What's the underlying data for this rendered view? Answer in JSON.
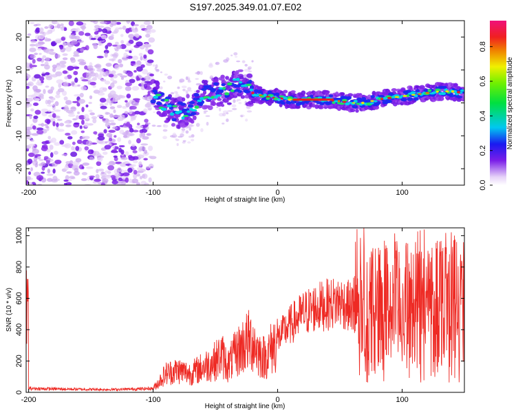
{
  "title": "S197.2025.349.01.07.E02",
  "colors": {
    "snr_line": "#ee2a24",
    "axis": "#000000",
    "background": "#ffffff"
  },
  "chart_data": [
    {
      "type": "heatmap",
      "title": "",
      "xlabel": "Height of straight line (km)",
      "ylabel": "Frequency (Hz)",
      "xlim": [
        -202,
        150
      ],
      "ylim": [
        -25,
        25
      ],
      "xticks": [
        -200,
        -100,
        0,
        100
      ],
      "yticks": [
        -20,
        -10,
        0,
        10,
        20
      ],
      "colorbar": {
        "label": "Normalized spectral amplitude",
        "range": [
          0.0,
          0.95
        ],
        "ticks": [
          0.0,
          0.2,
          0.4,
          0.6,
          0.8
        ],
        "colormap": "rainbow (white-violet-blue-cyan-green-yellow-red-magenta)"
      },
      "description_regions": [
        {
          "x_range": [
            -202,
            -100
          ],
          "freq_range": [
            -25,
            25
          ],
          "amplitude": "low, scattered noise"
        },
        {
          "x_range": [
            -100,
            -20
          ],
          "freq_range": [
            -8,
            10
          ],
          "amplitude": "moderate, diffuse band"
        },
        {
          "x_range": [
            -20,
            150
          ],
          "freq_center": [
            2,
            1,
            1,
            0,
            2,
            3,
            4
          ],
          "amplitude": "high, narrow band"
        }
      ],
      "band_centerline": {
        "x": [
          -100,
          -90,
          -80,
          -70,
          -60,
          -50,
          -40,
          -30,
          -20,
          -10,
          0,
          10,
          20,
          30,
          40,
          50,
          60,
          70,
          80,
          90,
          100,
          110,
          120,
          130,
          140,
          150
        ],
        "freq": [
          3,
          -1,
          -3,
          -2,
          2,
          3,
          4,
          6,
          3,
          2,
          1.5,
          1,
          1,
          1,
          1,
          0.5,
          0,
          0,
          1,
          1.5,
          2,
          2.5,
          3,
          3.5,
          3.5,
          3
        ]
      }
    },
    {
      "type": "line",
      "title": "",
      "xlabel": "Height of straight line (km)",
      "ylabel": "SNR (10 * v/v)",
      "xlim": [
        -202,
        150
      ],
      "ylim": [
        0,
        1050
      ],
      "xticks": [
        -200,
        -100,
        0,
        100
      ],
      "yticks": [
        0,
        200,
        400,
        600,
        800,
        1000
      ],
      "series": [
        {
          "name": "SNR",
          "x": [
            -200,
            -180,
            -160,
            -140,
            -120,
            -100,
            -95,
            -90,
            -80,
            -70,
            -60,
            -50,
            -45,
            -40,
            -35,
            -30,
            -25,
            -20,
            -15,
            -10,
            -5,
            0,
            5,
            10,
            20,
            30,
            40,
            50,
            60,
            65,
            70,
            80,
            90,
            100,
            110,
            120,
            130,
            140,
            150
          ],
          "values": [
            25,
            22,
            20,
            18,
            20,
            25,
            70,
            120,
            140,
            120,
            160,
            200,
            240,
            170,
            230,
            280,
            320,
            330,
            250,
            220,
            280,
            340,
            390,
            430,
            500,
            540,
            560,
            580,
            540,
            650,
            520,
            540,
            550,
            560,
            540,
            560,
            620,
            600,
            560
          ]
        }
      ],
      "peaks_annotated_max": 1050
    }
  ]
}
